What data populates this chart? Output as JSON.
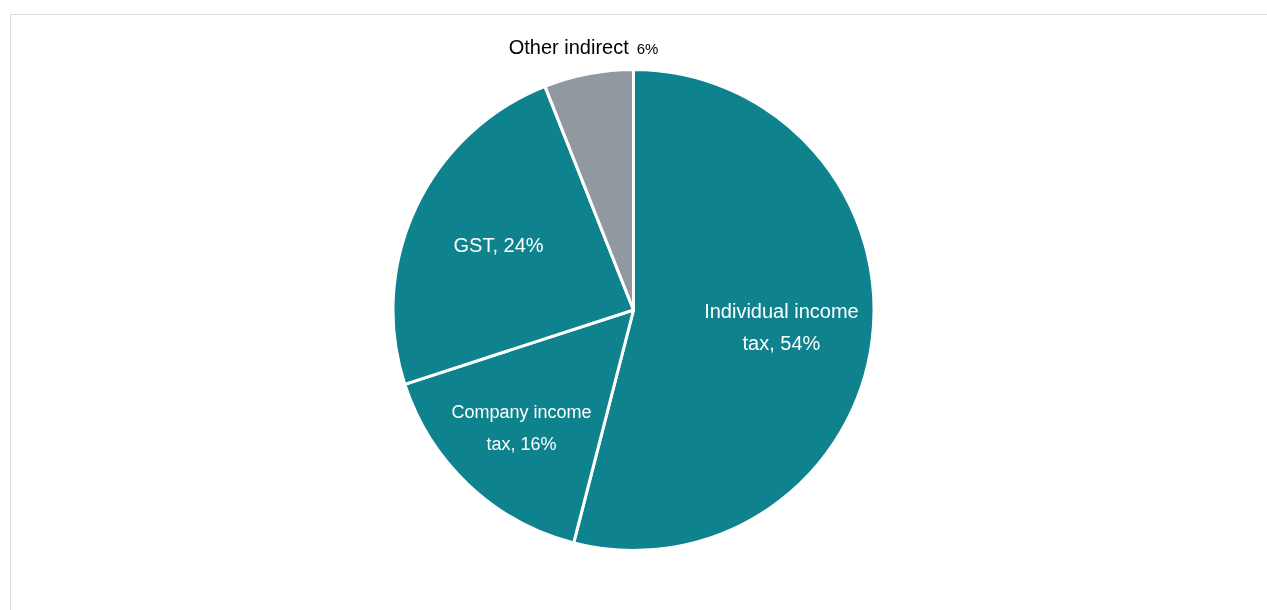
{
  "chart_data": {
    "type": "pie",
    "categories": [
      "Individual income tax",
      "Company income tax",
      "GST",
      "Other indirect"
    ],
    "values": [
      54,
      16,
      24,
      6
    ],
    "value_labels": [
      "54%",
      "16%",
      "24%",
      "6%"
    ],
    "colors": [
      "#0e838e",
      "#0e838e",
      "#0e838e",
      "#9199a0"
    ],
    "legend": false
  }
}
